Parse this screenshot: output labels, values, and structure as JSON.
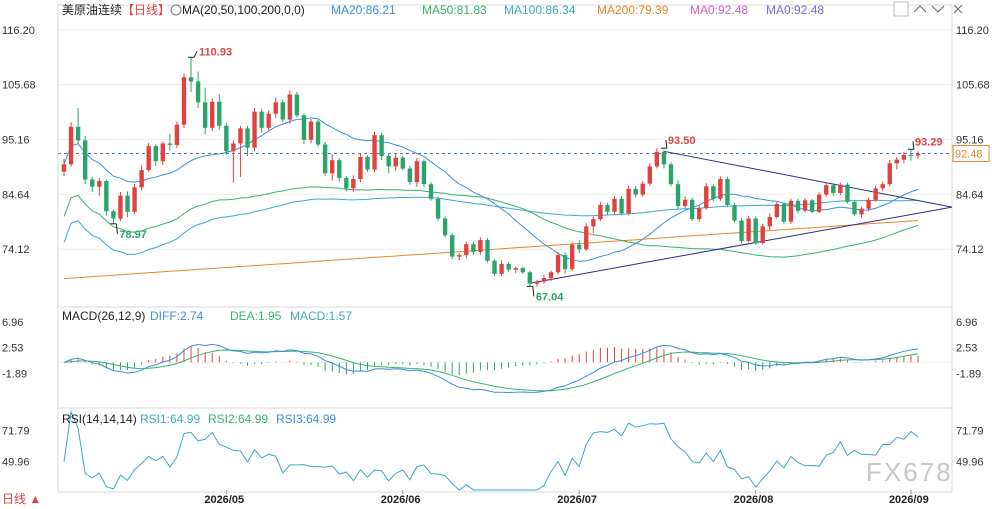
{
  "header": {
    "instrument": "美原油连续",
    "period": "【日线】",
    "ma_label": "MA(20,50,100,200,0,0)",
    "ma_values": [
      {
        "text": "MA20:86.21",
        "color": "#3a8fd9"
      },
      {
        "text": "MA50:81.83",
        "color": "#38b46c"
      },
      {
        "text": "MA100:86.34",
        "color": "#3aa8c8"
      },
      {
        "text": "MA200:79.39",
        "color": "#e8862a"
      },
      {
        "text": "MA0:92.48",
        "color": "#c860c8"
      },
      {
        "text": "MA0:92.48",
        "color": "#7b68d8"
      }
    ]
  },
  "toolbar": {
    "icons": [
      "settings-icon",
      "chevron-up-icon",
      "chevron-down-icon",
      "close-icon"
    ]
  },
  "price_axis": {
    "ticks": [
      "116.20",
      "105.68",
      "95.16",
      "84.64",
      "74.12"
    ],
    "ymin": 64.0,
    "ymax": 120.0,
    "current": "92.48"
  },
  "annotations": {
    "high": "110.93",
    "low1": "78.97",
    "low2": "67.04",
    "peak": "93.50",
    "last_high": "93.29"
  },
  "macd": {
    "label": "MACD(26,12,9)",
    "values": [
      {
        "text": "DIFF:2.74",
        "color": "#3a8fd9"
      },
      {
        "text": "DEA:1.95",
        "color": "#38b46c"
      },
      {
        "text": "MACD:1.57",
        "color": "#3aa8c8"
      }
    ],
    "ticks": [
      "6.96",
      "2.53",
      "-1.89"
    ]
  },
  "rsi": {
    "label": "RSI(14,14,14)",
    "values": [
      {
        "text": "RSI1:64.99",
        "color": "#3aa8c8"
      },
      {
        "text": "RSI2:64.99",
        "color": "#38b46c"
      },
      {
        "text": "RSI3:64.99",
        "color": "#3a8fd9"
      }
    ],
    "ticks": [
      "71.79",
      "49.96"
    ]
  },
  "x_axis": {
    "ticks": [
      "2026/05",
      "2026/06",
      "2026/07",
      "2026/08",
      "2026/09"
    ]
  },
  "footer": {
    "period_tab": "日线 ▲",
    "watermark": "FX678"
  },
  "colors": {
    "up": "#e0433f",
    "down": "#2aa56a",
    "ma20": "#3a8fd9",
    "ma50": "#38b46c",
    "ma100": "#3aa8c8",
    "ma200": "#e8862a",
    "trend": "#2b2b8c"
  },
  "chart_data": {
    "type": "candlestick",
    "candles": [
      [
        89.0,
        91.5,
        88.2,
        90.4
      ],
      [
        90.4,
        98.5,
        90.0,
        97.6
      ],
      [
        97.6,
        101.2,
        94.3,
        95.0
      ],
      [
        95.0,
        95.8,
        86.6,
        87.5
      ],
      [
        87.5,
        88.0,
        85.1,
        86.1
      ],
      [
        86.1,
        87.8,
        84.4,
        87.2
      ],
      [
        87.2,
        87.5,
        80.6,
        81.4
      ],
      [
        81.4,
        81.8,
        79.0,
        80.0
      ],
      [
        80.0,
        85.1,
        79.5,
        84.4
      ],
      [
        84.4,
        85.2,
        80.3,
        81.3
      ],
      [
        81.3,
        86.7,
        80.9,
        86.0
      ],
      [
        86.0,
        90.2,
        85.4,
        89.3
      ],
      [
        89.3,
        94.5,
        89.0,
        93.9
      ],
      [
        93.9,
        94.2,
        90.1,
        91.0
      ],
      [
        91.0,
        94.8,
        90.3,
        94.4
      ],
      [
        94.4,
        96.2,
        93.1,
        94.1
      ],
      [
        94.1,
        98.6,
        93.5,
        98.0
      ],
      [
        98.0,
        107.8,
        97.4,
        107.1
      ],
      [
        107.1,
        110.9,
        104.3,
        106.3
      ],
      [
        106.3,
        108.2,
        101.2,
        102.3
      ],
      [
        102.3,
        105.1,
        96.2,
        97.4
      ],
      [
        97.4,
        103.0,
        96.8,
        102.4
      ],
      [
        102.4,
        103.9,
        97.1,
        97.8
      ],
      [
        97.8,
        98.3,
        92.2,
        92.9
      ],
      [
        92.9,
        95.0,
        86.9,
        94.4
      ],
      [
        94.4,
        97.8,
        88.0,
        97.3
      ],
      [
        97.3,
        97.8,
        92.0,
        93.6
      ],
      [
        93.6,
        101.2,
        92.9,
        100.5
      ],
      [
        100.5,
        101.0,
        96.5,
        97.4
      ],
      [
        97.4,
        100.7,
        97.0,
        100.1
      ],
      [
        100.1,
        103.2,
        99.3,
        102.3
      ],
      [
        102.3,
        102.8,
        98.5,
        99.0
      ],
      [
        99.0,
        104.6,
        98.2,
        103.8
      ],
      [
        103.8,
        104.3,
        99.4,
        99.8
      ],
      [
        99.8,
        100.2,
        94.3,
        95.1
      ],
      [
        95.1,
        99.1,
        94.4,
        98.6
      ],
      [
        98.6,
        98.9,
        93.8,
        94.2
      ],
      [
        94.2,
        94.7,
        88.2,
        88.7
      ],
      [
        88.7,
        92.3,
        87.3,
        91.2
      ],
      [
        91.2,
        91.6,
        87.1,
        87.8
      ],
      [
        87.8,
        88.2,
        85.2,
        85.8
      ],
      [
        85.8,
        88.3,
        85.1,
        87.6
      ],
      [
        87.6,
        92.4,
        87.0,
        91.8
      ],
      [
        91.8,
        92.2,
        89.0,
        89.4
      ],
      [
        89.4,
        96.7,
        88.9,
        96.0
      ],
      [
        96.0,
        96.4,
        91.2,
        92.0
      ],
      [
        92.0,
        92.5,
        88.7,
        90.0
      ],
      [
        90.0,
        92.4,
        89.2,
        91.7
      ],
      [
        91.7,
        92.0,
        89.2,
        89.6
      ],
      [
        89.6,
        90.1,
        86.5,
        87.0
      ],
      [
        87.0,
        91.6,
        86.1,
        91.0
      ],
      [
        91.0,
        91.4,
        86.0,
        86.6
      ],
      [
        86.6,
        87.0,
        83.4,
        83.8
      ],
      [
        83.8,
        84.2,
        79.6,
        80.0
      ],
      [
        80.0,
        80.4,
        76.4,
        76.8
      ],
      [
        76.8,
        77.2,
        72.2,
        72.7
      ],
      [
        72.7,
        73.4,
        72.0,
        73.0
      ],
      [
        73.0,
        75.6,
        72.4,
        75.1
      ],
      [
        75.1,
        75.5,
        73.0,
        73.6
      ],
      [
        73.6,
        76.4,
        73.1,
        75.9
      ],
      [
        75.9,
        76.3,
        71.6,
        71.9
      ],
      [
        71.9,
        72.2,
        69.0,
        69.4
      ],
      [
        69.4,
        72.0,
        69.0,
        71.3
      ],
      [
        71.3,
        71.7,
        69.8,
        70.2
      ],
      [
        70.2,
        70.8,
        69.5,
        70.5
      ],
      [
        70.5,
        70.8,
        69.4,
        69.7
      ],
      [
        69.7,
        70.0,
        67.0,
        67.5
      ],
      [
        67.5,
        68.2,
        67.0,
        67.9
      ],
      [
        67.9,
        69.2,
        67.5,
        68.6
      ],
      [
        68.6,
        70.0,
        68.0,
        69.7
      ],
      [
        69.7,
        73.6,
        69.3,
        73.0
      ],
      [
        73.0,
        73.5,
        69.4,
        70.3
      ],
      [
        70.3,
        75.4,
        70.0,
        75.0
      ],
      [
        75.0,
        75.8,
        73.4,
        74.1
      ],
      [
        74.1,
        79.1,
        73.8,
        78.5
      ],
      [
        78.5,
        80.4,
        77.2,
        79.9
      ],
      [
        79.9,
        83.2,
        79.5,
        82.6
      ],
      [
        82.6,
        83.0,
        80.7,
        81.3
      ],
      [
        81.3,
        84.3,
        80.9,
        83.8
      ],
      [
        83.8,
        84.3,
        80.6,
        81.0
      ],
      [
        81.0,
        86.3,
        80.6,
        85.7
      ],
      [
        85.7,
        86.2,
        84.1,
        84.6
      ],
      [
        84.6,
        87.2,
        84.2,
        86.7
      ],
      [
        86.7,
        90.6,
        86.3,
        90.0
      ],
      [
        90.0,
        93.5,
        89.6,
        92.8
      ],
      [
        92.8,
        93.2,
        89.6,
        90.4
      ],
      [
        90.4,
        90.8,
        86.2,
        86.6
      ],
      [
        86.6,
        87.3,
        81.9,
        82.4
      ],
      [
        82.4,
        84.3,
        82.0,
        83.6
      ],
      [
        83.6,
        84.0,
        79.5,
        79.9
      ],
      [
        79.9,
        82.5,
        79.4,
        82.0
      ],
      [
        82.0,
        86.8,
        81.7,
        86.2
      ],
      [
        86.2,
        86.6,
        83.3,
        83.8
      ],
      [
        83.8,
        88.1,
        83.4,
        87.6
      ],
      [
        87.6,
        88.0,
        82.2,
        82.6
      ],
      [
        82.6,
        83.0,
        79.2,
        79.6
      ],
      [
        79.6,
        80.1,
        75.3,
        75.7
      ],
      [
        75.7,
        80.5,
        75.4,
        80.0
      ],
      [
        80.0,
        80.4,
        75.0,
        75.3
      ],
      [
        75.3,
        79.0,
        75.0,
        78.5
      ],
      [
        78.5,
        81.0,
        77.8,
        80.3
      ],
      [
        80.3,
        83.2,
        80.0,
        82.8
      ],
      [
        82.8,
        83.1,
        79.0,
        79.4
      ],
      [
        79.4,
        83.8,
        79.0,
        83.4
      ],
      [
        83.4,
        83.8,
        81.0,
        81.5
      ],
      [
        81.5,
        83.9,
        81.2,
        83.5
      ],
      [
        83.5,
        83.8,
        81.0,
        81.3
      ],
      [
        81.3,
        85.0,
        81.0,
        84.6
      ],
      [
        84.6,
        86.9,
        84.2,
        86.4
      ],
      [
        86.4,
        86.8,
        84.4,
        84.9
      ],
      [
        84.9,
        86.9,
        84.5,
        86.5
      ],
      [
        86.5,
        86.9,
        82.9,
        83.2
      ],
      [
        83.2,
        83.5,
        80.5,
        80.8
      ],
      [
        80.8,
        82.3,
        80.2,
        81.9
      ],
      [
        81.9,
        84.0,
        81.4,
        83.6
      ],
      [
        83.6,
        86.3,
        83.2,
        85.8
      ],
      [
        85.8,
        87.1,
        85.2,
        86.6
      ],
      [
        86.6,
        91.2,
        86.2,
        90.6
      ],
      [
        90.6,
        91.8,
        89.4,
        91.3
      ],
      [
        91.3,
        92.7,
        90.6,
        92.2
      ],
      [
        92.2,
        93.3,
        91.1,
        92.1
      ],
      [
        92.1,
        92.9,
        91.5,
        92.48
      ]
    ],
    "x_ticks": [
      "2026/05",
      "2026/06",
      "2026/07",
      "2026/08",
      "2026/09"
    ],
    "y_range": [
      64.0,
      120.0
    ],
    "reference_line": 92.48
  }
}
